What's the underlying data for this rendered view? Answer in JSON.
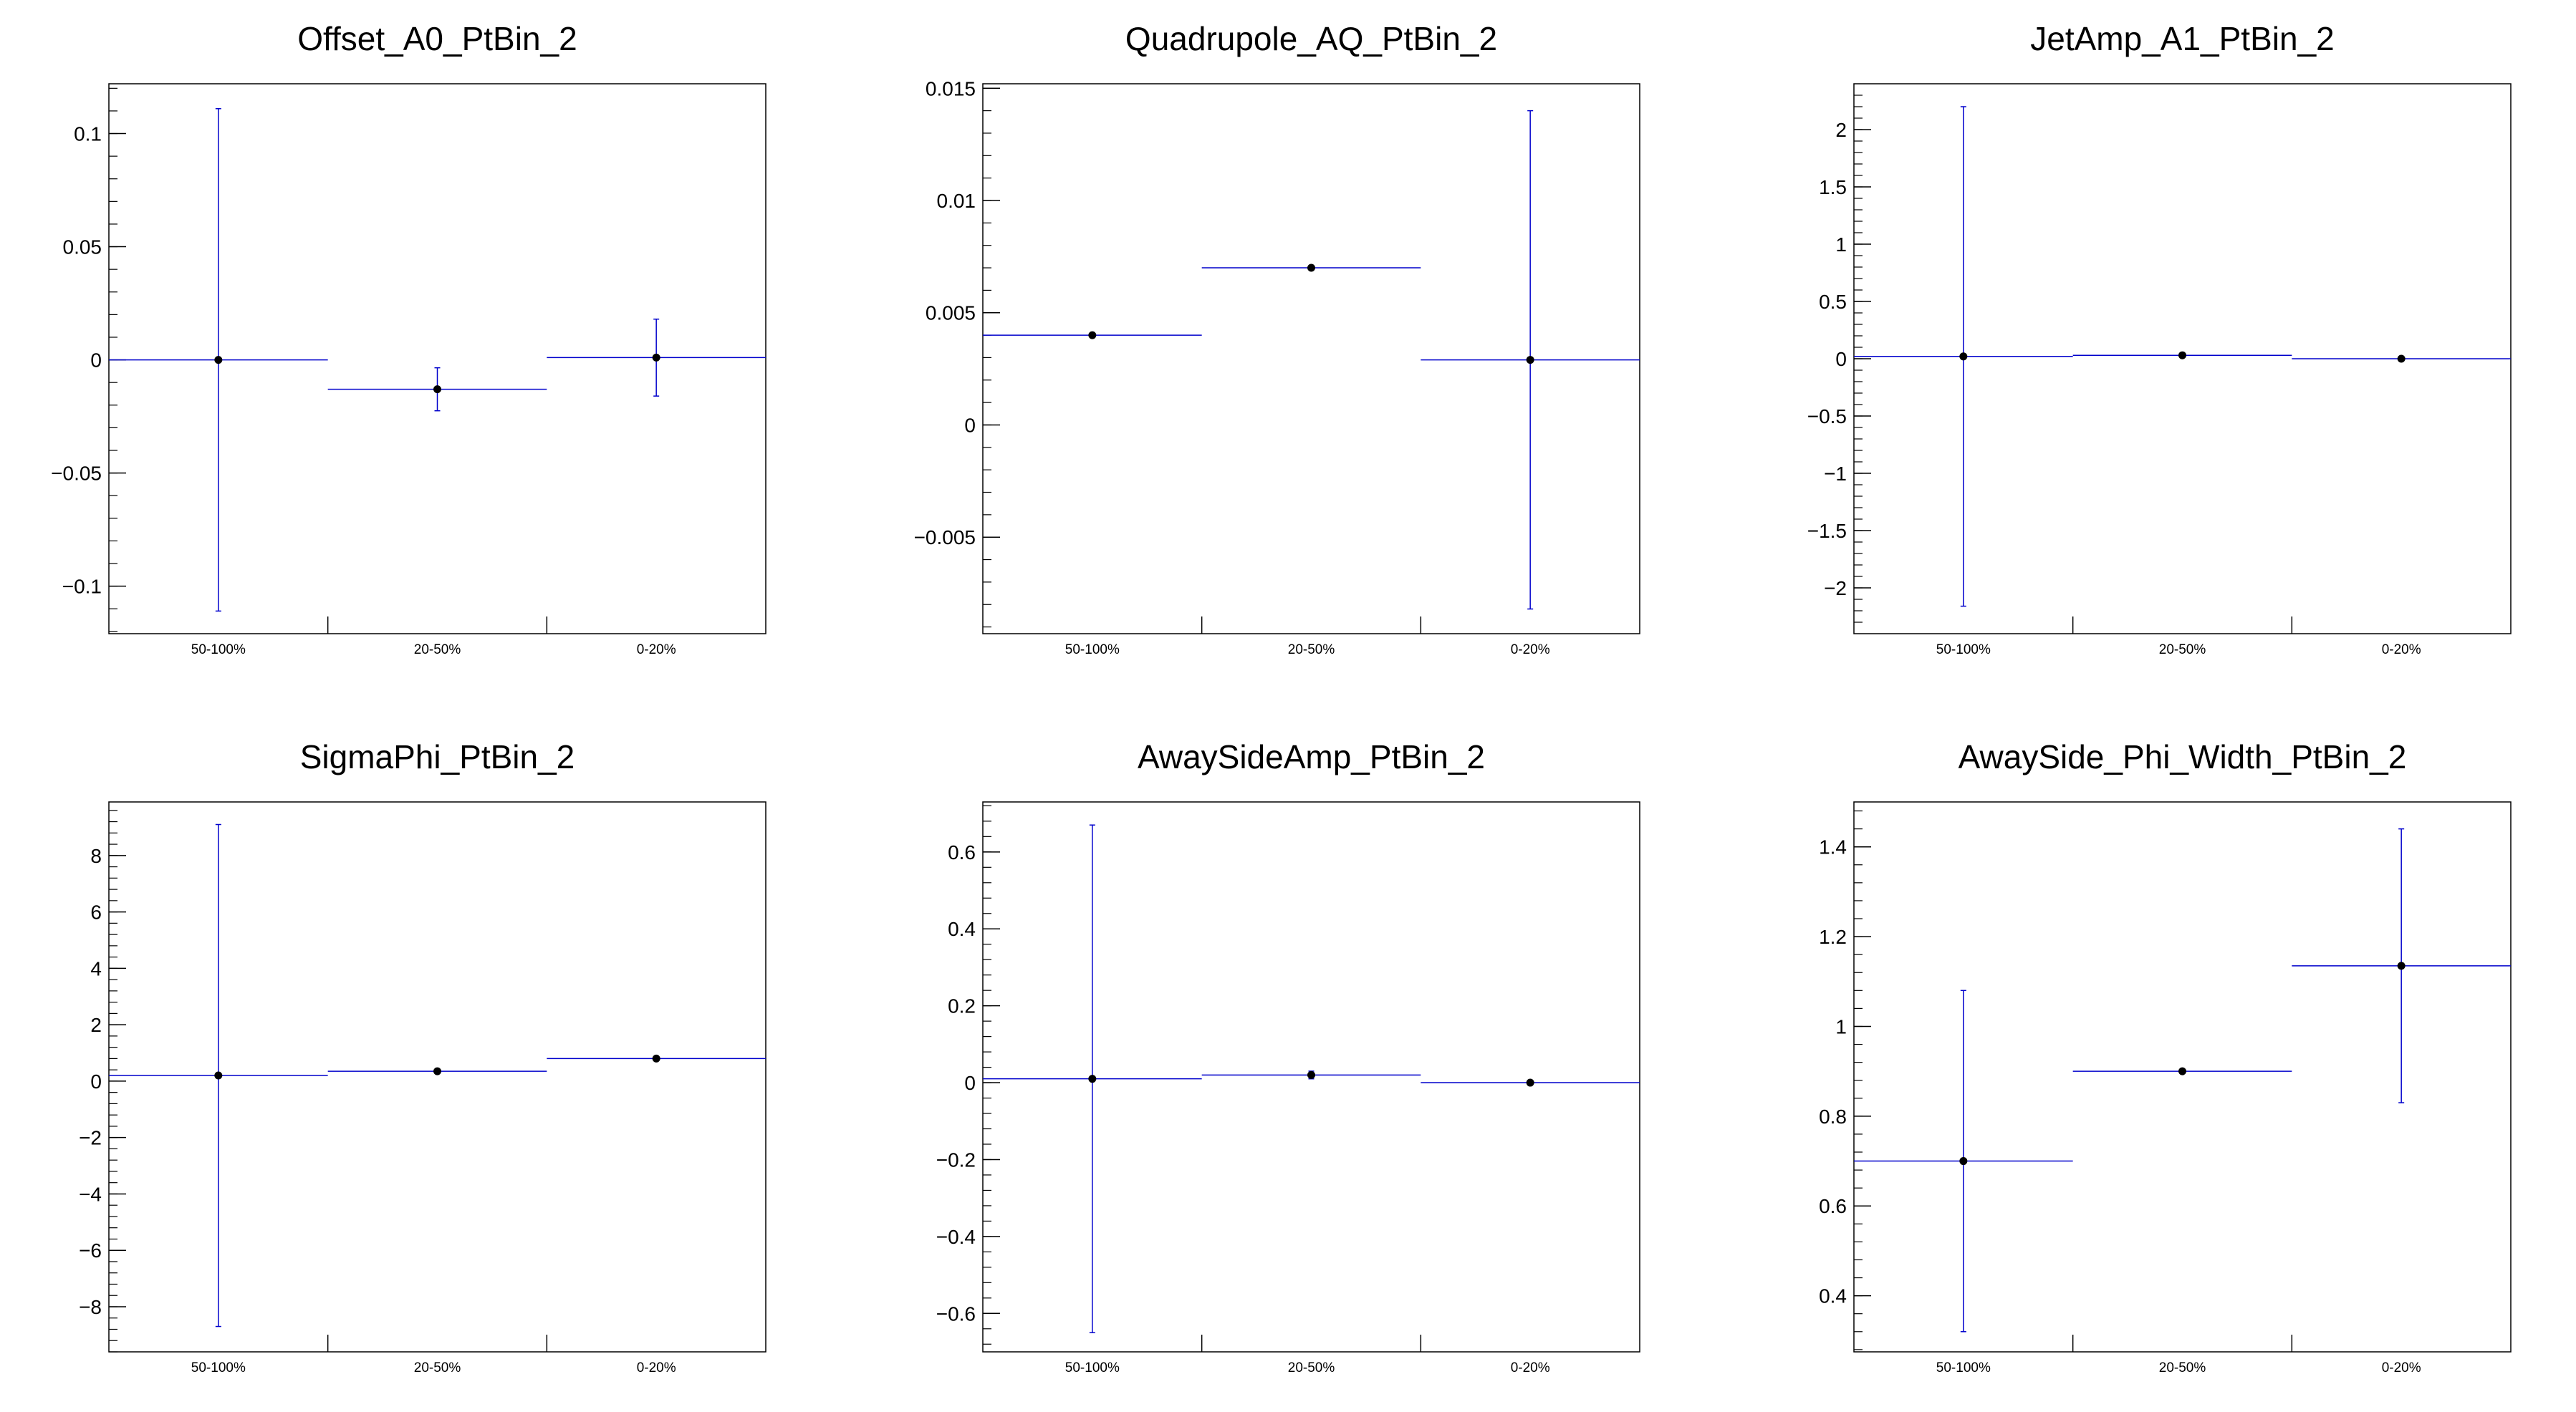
{
  "style": {
    "error_bar_color": "#0000cc",
    "marker_color": "#000000",
    "frame_color": "#000000"
  },
  "chart_data": [
    {
      "type": "scatter",
      "title": "Offset_A0_PtBin_2",
      "categories": [
        "50-100%",
        "20-50%",
        "0-20%"
      ],
      "y": [
        0.0,
        -0.013,
        0.001
      ],
      "yerr": [
        0.111,
        0.0095,
        0.017
      ],
      "yticks": [
        -0.1,
        -0.05,
        0,
        0.05,
        0.1
      ],
      "ytick_labels": [
        "−0.1",
        "−0.05",
        "0",
        "0.05",
        "0.1"
      ],
      "ylim": [
        -0.121,
        0.122
      ],
      "grid": false,
      "legend": "none"
    },
    {
      "type": "scatter",
      "title": "Quadrupole_AQ_PtBin_2",
      "categories": [
        "50-100%",
        "20-50%",
        "0-20%"
      ],
      "y": [
        0.004,
        0.007,
        0.0029
      ],
      "yerr": [
        0.0,
        0.0,
        0.0111
      ],
      "yticks": [
        -0.005,
        0,
        0.005,
        0.01,
        0.015
      ],
      "ytick_labels": [
        "−0.005",
        "0",
        "0.005",
        "0.01",
        "0.015"
      ],
      "ylim": [
        -0.0093,
        0.0152
      ],
      "grid": false,
      "legend": "none"
    },
    {
      "type": "scatter",
      "title": "JetAmp_A1_PtBin_2",
      "categories": [
        "50-100%",
        "20-50%",
        "0-20%"
      ],
      "y": [
        0.02,
        0.03,
        0.0
      ],
      "yerr": [
        2.18,
        0.0,
        0.0
      ],
      "yticks": [
        -2,
        -1.5,
        -1,
        -0.5,
        0,
        0.5,
        1,
        1.5,
        2
      ],
      "ytick_labels": [
        "−2",
        "−1.5",
        "−1",
        "−0.5",
        "0",
        "0.5",
        "1",
        "1.5",
        "2"
      ],
      "ylim": [
        -2.4,
        2.4
      ],
      "grid": false,
      "legend": "none"
    },
    {
      "type": "scatter",
      "title": "SigmaPhi_PtBin_2",
      "categories": [
        "50-100%",
        "20-50%",
        "0-20%"
      ],
      "y": [
        0.2,
        0.35,
        0.8
      ],
      "yerr": [
        8.9,
        0.0,
        0.0
      ],
      "yticks": [
        -8,
        -6,
        -4,
        -2,
        0,
        2,
        4,
        6,
        8
      ],
      "ytick_labels": [
        "−8",
        "−6",
        "−4",
        "−2",
        "0",
        "2",
        "4",
        "6",
        "8"
      ],
      "ylim": [
        -9.6,
        9.9
      ],
      "grid": false,
      "legend": "none"
    },
    {
      "type": "scatter",
      "title": "AwaySideAmp_PtBin_2",
      "categories": [
        "50-100%",
        "20-50%",
        "0-20%"
      ],
      "y": [
        0.01,
        0.02,
        0.0
      ],
      "yerr": [
        0.66,
        0.01,
        0.0
      ],
      "yticks": [
        -0.6,
        -0.4,
        -0.2,
        0,
        0.2,
        0.4,
        0.6
      ],
      "ytick_labels": [
        "−0.6",
        "−0.4",
        "−0.2",
        "0",
        "0.2",
        "0.4",
        "0.6"
      ],
      "ylim": [
        -0.7,
        0.73
      ],
      "grid": false,
      "legend": "none"
    },
    {
      "type": "scatter",
      "title": "AwaySide_Phi_Width_PtBin_2",
      "categories": [
        "50-100%",
        "20-50%",
        "0-20%"
      ],
      "y": [
        0.7,
        0.9,
        1.135
      ],
      "yerr": [
        0.38,
        0.0,
        0.305
      ],
      "yticks": [
        0.4,
        0.6,
        0.8,
        1,
        1.2,
        1.4
      ],
      "ytick_labels": [
        "0.4",
        "0.6",
        "0.8",
        "1",
        "1.2",
        "1.4"
      ],
      "ylim": [
        0.275,
        1.5
      ],
      "grid": false,
      "legend": "none"
    }
  ]
}
